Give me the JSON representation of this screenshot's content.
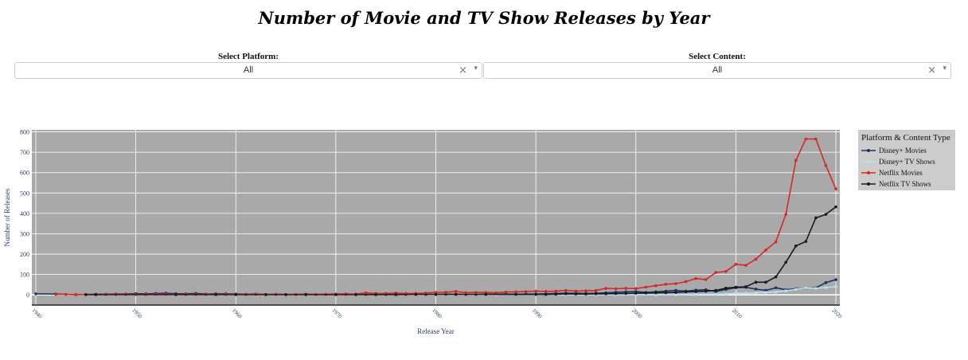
{
  "title": "Number of Movie and TV Show Releases by Year",
  "controls": {
    "platform_label": "Select Platform:",
    "platform_value": "All",
    "content_label": "Select Content:",
    "content_value": "All",
    "clear_glyph": "×",
    "arrow_glyph": "▾"
  },
  "legend": {
    "title": "Platform & Content Type"
  },
  "chart_data": {
    "type": "line",
    "xlabel": "Release Year",
    "ylabel": "Number of Releases",
    "xlim": [
      1940,
      2020
    ],
    "ylim": [
      -50,
      810
    ],
    "xticks": [
      1940,
      1950,
      1960,
      1970,
      1980,
      1990,
      2000,
      2010,
      2020
    ],
    "yticks": [
      0,
      100,
      200,
      300,
      400,
      500,
      600,
      700,
      800
    ],
    "grid": true,
    "legend_position": "right",
    "series": [
      {
        "name": "Disney+ Movies",
        "color": "#1f2f6b",
        "x": [
          1940,
          1942,
          1944,
          1946,
          1947,
          1948,
          1949,
          1950,
          1951,
          1952,
          1953,
          1954,
          1955,
          1956,
          1957,
          1958,
          1959,
          1960,
          1961,
          1962,
          1963,
          1964,
          1965,
          1966,
          1967,
          1968,
          1969,
          1970,
          1971,
          1972,
          1973,
          1974,
          1975,
          1976,
          1977,
          1978,
          1979,
          1980,
          1981,
          1982,
          1983,
          1984,
          1985,
          1986,
          1987,
          1988,
          1989,
          1990,
          1991,
          1992,
          1993,
          1994,
          1995,
          1996,
          1997,
          1998,
          1999,
          2000,
          2001,
          2002,
          2003,
          2004,
          2005,
          2006,
          2007,
          2008,
          2009,
          2010,
          2011,
          2012,
          2013,
          2014,
          2015,
          2016,
          2017,
          2018,
          2019,
          2020
        ],
        "y": [
          5,
          4,
          1,
          3,
          3,
          4,
          4,
          6,
          5,
          7,
          8,
          6,
          5,
          7,
          4,
          5,
          5,
          4,
          3,
          4,
          2,
          3,
          2,
          2,
          3,
          2,
          2,
          2,
          3,
          2,
          2,
          2,
          2,
          2,
          2,
          2,
          2,
          2,
          3,
          3,
          2,
          2,
          4,
          3,
          4,
          3,
          4,
          4,
          5,
          7,
          8,
          8,
          7,
          8,
          10,
          13,
          15,
          16,
          12,
          15,
          18,
          22,
          18,
          23,
          25,
          16,
          27,
          35,
          37,
          28,
          22,
          35,
          25,
          30,
          33,
          35,
          60,
          75
        ]
      },
      {
        "name": "Disney+ TV Shows",
        "color": "#b6e3ea",
        "x": [
          1986,
          1988,
          1990,
          1993,
          1996,
          1998,
          2000,
          2002,
          2004,
          2006,
          2008,
          2009,
          2010,
          2011,
          2012,
          2013,
          2014,
          2015,
          2016,
          2017,
          2018,
          2019,
          2020
        ],
        "y": [
          0,
          0,
          0,
          0,
          0,
          0,
          0,
          0,
          0,
          2,
          3,
          4,
          8,
          8,
          10,
          12,
          14,
          20,
          27,
          34,
          32,
          36,
          40
        ]
      },
      {
        "name": "Netflix Movies",
        "color": "#d62728",
        "x": [
          1942,
          1943,
          1944,
          1945,
          1946,
          1947,
          1948,
          1949,
          1950,
          1951,
          1952,
          1953,
          1954,
          1955,
          1956,
          1957,
          1958,
          1959,
          1960,
          1961,
          1962,
          1963,
          1964,
          1965,
          1966,
          1967,
          1968,
          1969,
          1970,
          1971,
          1972,
          1973,
          1974,
          1975,
          1976,
          1977,
          1978,
          1979,
          1980,
          1981,
          1982,
          1983,
          1984,
          1985,
          1986,
          1987,
          1988,
          1989,
          1990,
          1991,
          1992,
          1993,
          1994,
          1995,
          1996,
          1997,
          1998,
          1999,
          2000,
          2001,
          2002,
          2003,
          2004,
          2005,
          2006,
          2007,
          2008,
          2009,
          2010,
          2011,
          2012,
          2013,
          2014,
          2015,
          2016,
          2017,
          2018,
          2019,
          2020
        ],
        "y": [
          2,
          2,
          1,
          2,
          1,
          2,
          2,
          2,
          2,
          2,
          3,
          3,
          2,
          2,
          2,
          2,
          2,
          2,
          2,
          2,
          3,
          2,
          2,
          2,
          2,
          3,
          2,
          3,
          4,
          5,
          4,
          10,
          7,
          7,
          9,
          7,
          7,
          9,
          12,
          13,
          17,
          11,
          12,
          12,
          10,
          14,
          15,
          16,
          18,
          17,
          18,
          22,
          18,
          20,
          21,
          32,
          30,
          32,
          31,
          38,
          45,
          52,
          55,
          65,
          80,
          75,
          110,
          115,
          150,
          145,
          175,
          220,
          260,
          395,
          660,
          765,
          765,
          635,
          520
        ]
      },
      {
        "name": "Netflix TV Shows",
        "color": "#1a1a1a",
        "x": [
          1945,
          1946,
          1954,
          1958,
          1960,
          1963,
          1965,
          1967,
          1970,
          1972,
          1974,
          1976,
          1978,
          1980,
          1982,
          1985,
          1988,
          1990,
          1991,
          1992,
          1993,
          1994,
          1995,
          1996,
          1997,
          1998,
          1999,
          2000,
          2001,
          2002,
          2003,
          2004,
          2005,
          2006,
          2007,
          2008,
          2009,
          2010,
          2011,
          2012,
          2013,
          2014,
          2015,
          2016,
          2017,
          2018,
          2019,
          2020
        ],
        "y": [
          1,
          1,
          1,
          1,
          1,
          1,
          1,
          1,
          1,
          1,
          1,
          1,
          2,
          2,
          2,
          2,
          2,
          2,
          2,
          3,
          5,
          4,
          4,
          5,
          5,
          6,
          7,
          8,
          9,
          10,
          11,
          12,
          15,
          16,
          18,
          22,
          33,
          38,
          40,
          62,
          62,
          88,
          160,
          240,
          262,
          378,
          395,
          432
        ]
      }
    ]
  }
}
